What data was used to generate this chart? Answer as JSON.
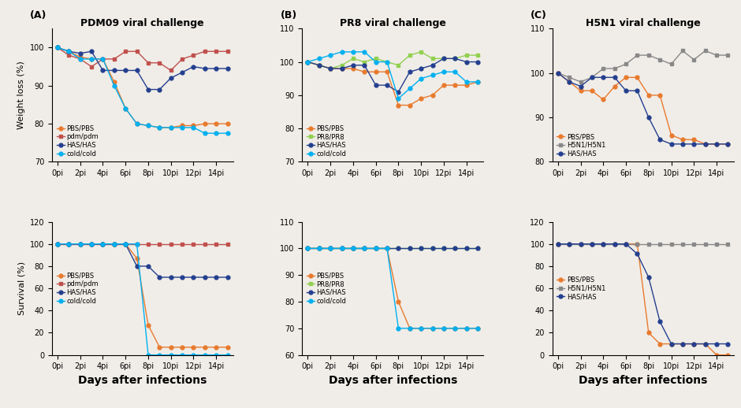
{
  "days": [
    0,
    1,
    2,
    3,
    4,
    5,
    6,
    7,
    8,
    9,
    10,
    11,
    12,
    13,
    14,
    15
  ],
  "days_labels": [
    "0pi",
    "2pi",
    "4pi",
    "6pi",
    "8pi",
    "10pi",
    "12pi",
    "14pi"
  ],
  "days_ticks": [
    0,
    2,
    4,
    6,
    8,
    10,
    12,
    14
  ],
  "A_weight": {
    "PBS/PBS": [
      100,
      99,
      97.5,
      97,
      97,
      91,
      84,
      80,
      79.5,
      79,
      79,
      79.5,
      79.5,
      80,
      80,
      80
    ],
    "pdm/pdm": [
      100,
      98,
      97,
      95,
      97,
      97,
      99,
      99,
      96,
      96,
      94,
      97,
      98,
      99,
      99,
      99
    ],
    "HAS/HAS": [
      100,
      99,
      98.5,
      99,
      94,
      94,
      94,
      94,
      89,
      89,
      92,
      93.5,
      95,
      94.5,
      94.5,
      94.5
    ],
    "cold/cold": [
      100,
      99,
      97,
      97,
      97,
      90,
      84,
      80,
      79.5,
      79,
      79,
      79,
      79,
      77.5,
      77.5,
      77.5
    ]
  },
  "A_survival": {
    "PBS/PBS": [
      100,
      100,
      100,
      100,
      100,
      100,
      100,
      87,
      27,
      7,
      7,
      7,
      7,
      7,
      7,
      7
    ],
    "pdm/pdm": [
      100,
      100,
      100,
      100,
      100,
      100,
      100,
      100,
      100,
      100,
      100,
      100,
      100,
      100,
      100,
      100
    ],
    "HAS/HAS": [
      100,
      100,
      100,
      100,
      100,
      100,
      100,
      80,
      80,
      70,
      70,
      70,
      70,
      70,
      70,
      70
    ],
    "cold/cold": [
      100,
      100,
      100,
      100,
      100,
      100,
      100,
      100,
      0,
      0,
      0,
      0,
      0,
      0,
      0,
      0
    ]
  },
  "B_weight": {
    "PBS/PBS": [
      100,
      99,
      98,
      98,
      98,
      97,
      97,
      97,
      87,
      87,
      89,
      90,
      93,
      93,
      93,
      94
    ],
    "PR8/PR8": [
      100,
      99,
      98,
      99,
      101,
      100,
      101,
      100,
      99,
      102,
      103,
      101,
      101,
      101,
      102,
      102
    ],
    "HAS/HAS": [
      100,
      99,
      98,
      98,
      99,
      99,
      93,
      93,
      91,
      97,
      98,
      99,
      101,
      101,
      100,
      100
    ],
    "cold/cold": [
      100,
      101,
      102,
      103,
      103,
      103,
      100,
      100,
      89,
      92,
      95,
      96,
      97,
      97,
      94,
      94
    ]
  },
  "B_survival": {
    "PBS/PBS": [
      100,
      100,
      100,
      100,
      100,
      100,
      100,
      100,
      80,
      70,
      70,
      70,
      70,
      70,
      70,
      70
    ],
    "PR8/PR8": [
      100,
      100,
      100,
      100,
      100,
      100,
      100,
      100,
      100,
      100,
      100,
      100,
      100,
      100,
      100,
      100
    ],
    "HAS/HAS": [
      100,
      100,
      100,
      100,
      100,
      100,
      100,
      100,
      100,
      100,
      100,
      100,
      100,
      100,
      100,
      100
    ],
    "cold/cold": [
      100,
      100,
      100,
      100,
      100,
      100,
      100,
      100,
      70,
      70,
      70,
      70,
      70,
      70,
      70,
      70
    ]
  },
  "C_weight": {
    "PBS/PBS": [
      100,
      98,
      96,
      96,
      94,
      97,
      99,
      99,
      95,
      95,
      86,
      85,
      85,
      84,
      84,
      84
    ],
    "H5N1/H5N1": [
      100,
      99,
      98,
      99,
      101,
      101,
      102,
      104,
      104,
      103,
      102,
      105,
      103,
      105,
      104,
      104
    ],
    "HAS/HAS": [
      100,
      98,
      97,
      99,
      99,
      99,
      96,
      96,
      90,
      85,
      84,
      84,
      84,
      84,
      84,
      84
    ]
  },
  "C_survival": {
    "PBS/PBS": [
      100,
      100,
      100,
      100,
      100,
      100,
      100,
      100,
      20,
      10,
      10,
      10,
      10,
      10,
      0,
      0
    ],
    "H5N1/H5N1": [
      100,
      100,
      100,
      100,
      100,
      100,
      100,
      100,
      100,
      100,
      100,
      100,
      100,
      100,
      100,
      100
    ],
    "HAS/HAS": [
      100,
      100,
      100,
      100,
      100,
      100,
      100,
      91,
      70,
      30,
      10,
      10,
      10,
      10,
      10,
      10
    ]
  },
  "colors_A": {
    "PBS/PBS": "#E87A2E",
    "pdm/pdm": "#C0504D",
    "HAS/HAS": "#243F8F",
    "cold/cold": "#00B0F0"
  },
  "colors_B": {
    "PBS/PBS": "#E87A2E",
    "PR8/PR8": "#92D050",
    "HAS/HAS": "#243F8F",
    "cold/cold": "#00B0F0"
  },
  "colors_C": {
    "PBS/PBS": "#E87A2E",
    "H5N1/H5N1": "#888888",
    "HAS/HAS": "#243F8F"
  },
  "title_A": "PDM09 viral challenge",
  "title_B": "PR8 viral challenge",
  "title_C": "H5N1 viral challenge",
  "xlabel": "Days after infections",
  "ylabel_weight": "Weight loss (%)",
  "ylabel_survival": "Survival (%)",
  "bg_color": "#f0ede8"
}
